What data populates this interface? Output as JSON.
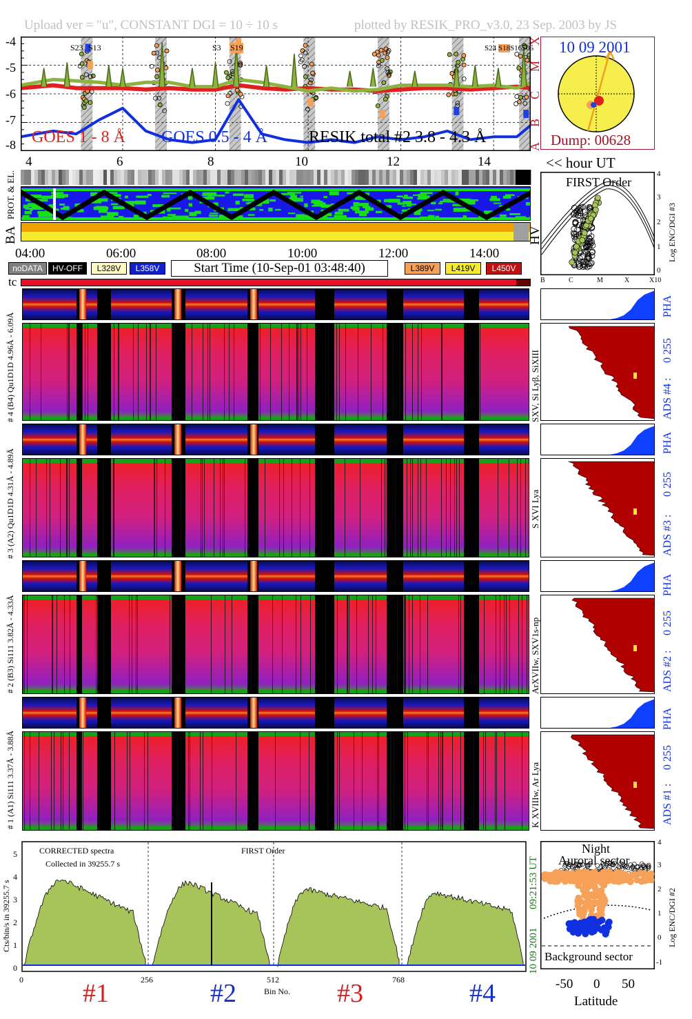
{
  "header": {
    "left": "Upload ver = \"u\", CONSTANT  DGI =  10 ÷  10 s",
    "right": "plotted by RESIK_PRO_v3.0, 23 Sep. 2003 by JS"
  },
  "goes_panel": {
    "y_ticks": [
      "-4",
      "-5",
      "-6",
      "-7",
      "-8"
    ],
    "class_letters": [
      "X",
      "M",
      "C",
      "B",
      "A"
    ],
    "legend_goes1": "GOES 1 - 8 Å",
    "legend_goes2": "GOES 0.5 - 4 Å",
    "legend_resik": "RESIK total #2  3.8 - 4.3 Å",
    "x_ticks": [
      "4",
      "6",
      "8",
      "10",
      "12",
      "14"
    ],
    "x_label": "<< hour UT",
    "annotations": [
      "S23",
      "S13",
      "S3",
      "S19",
      "S24",
      "S18",
      "S16",
      "S05"
    ]
  },
  "globe": {
    "date": "10 09 2001",
    "dump": "Dump: 00628"
  },
  "status_panel": {
    "label_prot": "PROT. & EL.",
    "label_ba": "BA",
    "label_hv": "HV",
    "time_ticks": [
      "04:00",
      "06:00",
      "08:00",
      "10:00",
      "12:00",
      "14:00"
    ]
  },
  "legend": {
    "nodata": "noDATA",
    "hvoff": "HV-OFF",
    "l328": "L328V",
    "l358": "L358V",
    "start_time": "Start Time (10-Sep-01 03:48:40)",
    "l389": "L389V",
    "l419": "L419V",
    "l450": "L450V",
    "tc": "tc"
  },
  "first_order_panel": {
    "title": "FIRST Order",
    "y_label": "Log ENC/DGI #3",
    "y_ticks": [
      "4",
      "3",
      "2",
      "1",
      "0"
    ],
    "x_ticks": [
      "B",
      "C",
      "M",
      "X",
      "X10"
    ]
  },
  "channels": [
    {
      "pha_left": "# 4 (B4)  Qu1D1D 4.96Å - 6.09Å",
      "right_label": "SXV, Si Lyβ, SiXIII",
      "ads": "ADS #4 :",
      "range": "0 255",
      "pha": "PHA"
    },
    {
      "pha_left": "# 3 (A2)  Qu1D1D 4.31Å - 4.89Å",
      "right_label": "S XVI Lya",
      "ads": "ADS #3 :",
      "range": "0 255",
      "pha": "PHA"
    },
    {
      "pha_left": "# 2 (B3)  Si111 3.82Å - 4.33Å",
      "right_label": "ArXVIIw, SXV1s-np",
      "ads": "ADS #2 :",
      "range": "0 255",
      "pha": "PHA"
    },
    {
      "pha_left": "# 1 (A1)  Si111 3.37Å - 3.88Å",
      "right_label": "K XVIIIw, Ar Lya",
      "ads": "ADS #1 :",
      "range": "0 255",
      "pha": "PHA"
    }
  ],
  "spectrum_panel": {
    "title_left": "CORRECTED spectra",
    "subtitle": "Collected in 39255.7 s",
    "title_mid": "FIRST Order",
    "y_label": "Cts/bin/s in 39255.7 s",
    "x_label": "Bin No.",
    "x_ticks": [
      "0",
      "256",
      "512",
      "768"
    ],
    "y_ticks": [
      "0",
      "1",
      "2",
      "3",
      "4",
      "5"
    ],
    "date_side": "10 09 2001",
    "time_side": "09:21:53 UT",
    "channel_marks": [
      "#1",
      "#2",
      "#3",
      "#4"
    ],
    "mark_colors": [
      "#d42020",
      "#1530c8",
      "#d42020",
      "#1530c8"
    ]
  },
  "latitude_panel": {
    "title1": "Night",
    "title2": "Auroral sector",
    "bottom_label": "Background sector",
    "x_label": "Latitude",
    "x_ticks": [
      "-50",
      "0",
      "50"
    ],
    "y_label": "Log ENC/DGI #2",
    "y_ticks": [
      "4",
      "3",
      "2",
      "1",
      "0",
      "-1"
    ]
  },
  "colors": {
    "goes_red": "#e02020",
    "goes_blue": "#1030e0",
    "resik_green": "#8cb43c",
    "dark_red": "#a01020",
    "navy": "#101080",
    "olive": "#a6c45a",
    "orange": "#f7a058",
    "ads_red": "#b00000",
    "pha_blue": "#1040ff"
  },
  "chart_data": {
    "type": "line",
    "title": "",
    "xlabel": "<< hour UT",
    "ylabel": "",
    "xlim": [
      3.8,
      14.8
    ],
    "ylim": [
      -8,
      -4
    ],
    "series": [
      {
        "name": "GOES 1 - 8 Å",
        "x": [
          3.8,
          4.5,
          5,
          5.5,
          6,
          6.5,
          7,
          7.5,
          8,
          8.5,
          9,
          9.5,
          10,
          10.5,
          11,
          11.5,
          12,
          12.5,
          13,
          13.5,
          14,
          14.5,
          14.8
        ],
        "values": [
          -5.8,
          -5.7,
          -5.8,
          -5.8,
          -5.8,
          -5.85,
          -5.8,
          -5.85,
          -5.85,
          -5.7,
          -5.8,
          -5.85,
          -5.8,
          -5.85,
          -5.85,
          -5.9,
          -5.85,
          -5.8,
          -5.8,
          -5.85,
          -5.8,
          -5.75,
          -5.8
        ]
      },
      {
        "name": "GOES 0.5 - 4 Å",
        "x": [
          3.8,
          4.5,
          5,
          5.5,
          6,
          6.5,
          7,
          7.5,
          8,
          8.5,
          9,
          9.5,
          10,
          10.5,
          11,
          11.5,
          12,
          12.5,
          13,
          13.5,
          14,
          14.5,
          14.8
        ],
        "values": [
          -7.5,
          -7.3,
          -7.4,
          -6.9,
          -6.5,
          -7.3,
          -7.6,
          -7.7,
          -7.6,
          -6.2,
          -7.4,
          -7.6,
          -7.7,
          -7.6,
          -7.7,
          -7.5,
          -7.6,
          -7.5,
          -7.3,
          -7.6,
          -7.5,
          -7.5,
          -7.1
        ]
      },
      {
        "name": "RESIK total #2  3.8 - 4.3 Å",
        "x": [
          3.8,
          4.5,
          5,
          5.5,
          6,
          6.5,
          7,
          7.5,
          8,
          8.5,
          9,
          9.5,
          10,
          10.5,
          11,
          11.5,
          12,
          12.5,
          13,
          13.5,
          14,
          14.5,
          14.8
        ],
        "values": [
          -5.7,
          -5.5,
          -5.55,
          -5.6,
          -5.7,
          -5.6,
          -5.6,
          -5.75,
          -5.75,
          -5.5,
          -5.6,
          -5.75,
          -5.9,
          -5.8,
          -5.9,
          -5.85,
          -5.7,
          -5.7,
          -5.7,
          -5.75,
          -5.7,
          -5.8,
          -5.6
        ]
      }
    ]
  }
}
